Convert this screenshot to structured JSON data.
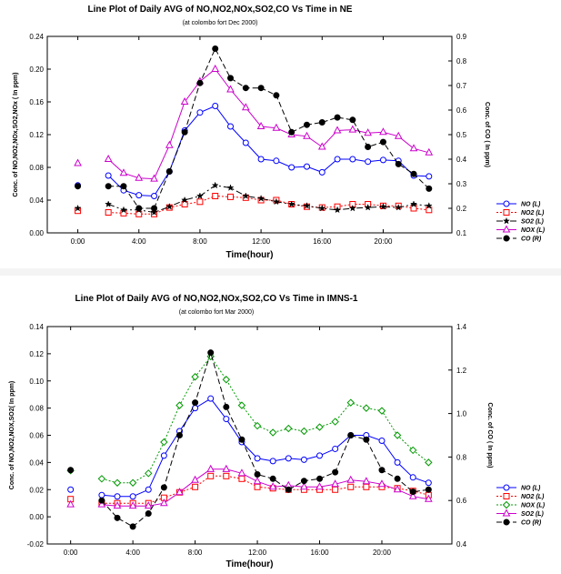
{
  "chart_data": [
    {
      "type": "line",
      "title": "Line Plot of Daily AVG of NO,NO2,NOx,SO2,CO Vs Time in NE",
      "subtitle": "(at colombo fort Dec 2000)",
      "xlabel": "Time(hour)",
      "ylabel": "Conc. of NO,NO2,NOx,SO2,NOx ( In ppm)",
      "ylabel_right": "Conc. of CO ( In ppm)",
      "x_ticks": [
        "0:00",
        "4:00",
        "8:00",
        "12:00",
        "16:00",
        "20:00"
      ],
      "xlim": [
        -2,
        24.5
      ],
      "ylim": [
        0,
        0.24
      ],
      "y_ticks": [
        "0.00",
        "0.04",
        "0.08",
        "0.12",
        "0.16",
        "0.20",
        "0.24"
      ],
      "ylim_right": [
        0.1,
        0.9
      ],
      "y_ticks_right": [
        "0.1",
        "0.2",
        "0.3",
        "0.4",
        "0.5",
        "0.6",
        "0.7",
        "0.8",
        "0.9"
      ],
      "grid": false,
      "legend_position": "lower-right",
      "series": [
        {
          "name": "NO (L)",
          "axis": "left",
          "color": "#0000ff",
          "marker": "circle",
          "dash": "solid",
          "x": [
            0,
            2,
            3,
            4,
            5,
            6,
            7,
            8,
            9,
            10,
            11,
            12,
            13,
            14,
            15,
            16,
            17,
            18,
            19,
            20,
            21,
            22,
            23
          ],
          "y": [
            0.058,
            0.07,
            0.052,
            0.046,
            0.045,
            0.075,
            0.125,
            0.147,
            0.155,
            0.13,
            0.11,
            0.09,
            0.088,
            0.08,
            0.081,
            0.074,
            0.09,
            0.09,
            0.087,
            0.089,
            0.088,
            0.07,
            0.069
          ]
        },
        {
          "name": "NO2 (L)",
          "axis": "left",
          "color": "#ff0000",
          "marker": "square",
          "dash": "dot",
          "x": [
            0,
            2,
            3,
            4,
            5,
            6,
            7,
            8,
            9,
            10,
            11,
            12,
            13,
            14,
            15,
            16,
            17,
            18,
            19,
            20,
            21,
            22,
            23
          ],
          "y": [
            0.027,
            0.025,
            0.024,
            0.023,
            0.023,
            0.031,
            0.035,
            0.038,
            0.045,
            0.044,
            0.043,
            0.04,
            0.04,
            0.035,
            0.032,
            0.031,
            0.032,
            0.035,
            0.035,
            0.033,
            0.033,
            0.03,
            0.028
          ]
        },
        {
          "name": "SO2 (L)",
          "axis": "left",
          "color": "#000000",
          "marker": "star",
          "dash": "dashdot",
          "x": [
            0,
            2,
            3,
            4,
            5,
            6,
            7,
            8,
            9,
            10,
            11,
            12,
            13,
            14,
            15,
            16,
            17,
            18,
            19,
            20,
            21,
            22,
            23
          ],
          "y": [
            0.03,
            0.035,
            0.028,
            0.028,
            0.025,
            0.032,
            0.04,
            0.045,
            0.058,
            0.055,
            0.045,
            0.042,
            0.038,
            0.035,
            0.033,
            0.03,
            0.028,
            0.03,
            0.031,
            0.032,
            0.031,
            0.035,
            0.033
          ]
        },
        {
          "name": "NOX (L)",
          "axis": "left",
          "color": "#cc00cc",
          "marker": "triangle",
          "dash": "solid",
          "x": [
            0,
            2,
            3,
            4,
            5,
            6,
            7,
            8,
            9,
            10,
            11,
            12,
            13,
            14,
            15,
            16,
            17,
            18,
            19,
            20,
            21,
            22,
            23
          ],
          "y": [
            0.085,
            0.09,
            0.073,
            0.067,
            0.066,
            0.107,
            0.16,
            0.185,
            0.2,
            0.175,
            0.153,
            0.13,
            0.128,
            0.12,
            0.118,
            0.105,
            0.125,
            0.126,
            0.122,
            0.123,
            0.118,
            0.103,
            0.098
          ]
        },
        {
          "name": "CO (R)",
          "axis": "right",
          "color": "#000000",
          "marker": "filled-circle",
          "dash": "dash",
          "x": [
            0,
            2,
            3,
            4,
            5,
            6,
            7,
            8,
            9,
            10,
            11,
            12,
            13,
            14,
            15,
            16,
            17,
            18,
            19,
            20,
            21,
            22,
            23
          ],
          "y": [
            0.29,
            0.29,
            0.29,
            0.2,
            0.2,
            0.35,
            0.51,
            0.71,
            0.85,
            0.73,
            0.69,
            0.69,
            0.66,
            0.51,
            0.54,
            0.55,
            0.57,
            0.56,
            0.45,
            0.47,
            0.38,
            0.34,
            0.28
          ]
        }
      ]
    },
    {
      "type": "line",
      "title": "Line Plot of Daily AVG of NO,NO2,NOx,SO2,CO Vs Time in IMNS-1",
      "subtitle": "(at colombo fort Mar 2000)",
      "xlabel": "Time(hour)",
      "ylabel": "Conc. of NO,NO2,NOX,SO2( In ppm)",
      "ylabel_right": "Conc. of CO ( In ppm)",
      "x_ticks": [
        "0:00",
        "4:00",
        "8:00",
        "12:00",
        "16:00",
        "20:00"
      ],
      "xlim": [
        -1.5,
        24.5
      ],
      "ylim": [
        -0.02,
        0.14
      ],
      "y_ticks": [
        "-0.02",
        "0.00",
        "0.02",
        "0.04",
        "0.06",
        "0.08",
        "0.10",
        "0.12",
        "0.14"
      ],
      "ylim_right": [
        0.4,
        1.4
      ],
      "y_ticks_right": [
        "0.4",
        "0.6",
        "0.8",
        "1.0",
        "1.2",
        "1.4"
      ],
      "grid": false,
      "legend_position": "lower-right",
      "series": [
        {
          "name": "NO (L)",
          "axis": "left",
          "color": "#0000ff",
          "marker": "circle",
          "dash": "solid",
          "x": [
            0,
            2,
            3,
            4,
            5,
            6,
            7,
            8,
            9,
            10,
            11,
            12,
            13,
            14,
            15,
            16,
            17,
            18,
            19,
            20,
            21,
            22,
            23
          ],
          "y": [
            0.02,
            0.016,
            0.015,
            0.015,
            0.02,
            0.045,
            0.063,
            0.08,
            0.087,
            0.072,
            0.055,
            0.043,
            0.041,
            0.043,
            0.042,
            0.045,
            0.05,
            0.06,
            0.06,
            0.056,
            0.04,
            0.029,
            0.025
          ]
        },
        {
          "name": "NO2 (L)",
          "axis": "left",
          "color": "#ff0000",
          "marker": "square",
          "dash": "dot",
          "x": [
            0,
            2,
            3,
            4,
            5,
            6,
            7,
            8,
            9,
            10,
            11,
            12,
            13,
            14,
            15,
            16,
            17,
            18,
            19,
            20,
            21,
            22,
            23
          ],
          "y": [
            0.013,
            0.01,
            0.01,
            0.01,
            0.01,
            0.014,
            0.018,
            0.022,
            0.03,
            0.03,
            0.028,
            0.022,
            0.021,
            0.02,
            0.02,
            0.02,
            0.02,
            0.022,
            0.022,
            0.022,
            0.021,
            0.019,
            0.016
          ]
        },
        {
          "name": "NOX (L)",
          "axis": "left",
          "color": "#009900",
          "marker": "diamond",
          "dash": "dot",
          "x": [
            0,
            2,
            3,
            4,
            5,
            6,
            7,
            8,
            9,
            10,
            11,
            12,
            13,
            14,
            15,
            16,
            17,
            18,
            19,
            20,
            21,
            22,
            23
          ],
          "y": [
            0.034,
            0.028,
            0.025,
            0.025,
            0.032,
            0.055,
            0.082,
            0.103,
            0.118,
            0.101,
            0.082,
            0.067,
            0.062,
            0.065,
            0.063,
            0.066,
            0.07,
            0.084,
            0.08,
            0.078,
            0.06,
            0.049,
            0.04
          ]
        },
        {
          "name": "SO2 (L)",
          "axis": "left",
          "color": "#cc00cc",
          "marker": "triangle",
          "dash": "solid",
          "x": [
            0,
            2,
            3,
            4,
            5,
            6,
            7,
            8,
            9,
            10,
            11,
            12,
            13,
            14,
            15,
            16,
            17,
            18,
            19,
            20,
            21,
            22,
            23
          ],
          "y": [
            0.009,
            0.009,
            0.008,
            0.008,
            0.008,
            0.01,
            0.018,
            0.027,
            0.035,
            0.035,
            0.032,
            0.026,
            0.022,
            0.023,
            0.022,
            0.022,
            0.024,
            0.027,
            0.026,
            0.024,
            0.02,
            0.015,
            0.013
          ]
        },
        {
          "name": "CO (R)",
          "axis": "right",
          "color": "#000000",
          "marker": "filled-circle",
          "dash": "dash",
          "x": [
            0,
            2,
            3,
            4,
            5,
            6,
            7,
            8,
            9,
            10,
            11,
            12,
            13,
            14,
            15,
            16,
            17,
            18,
            19,
            20,
            21,
            22,
            23
          ],
          "y": [
            0.74,
            0.6,
            0.52,
            0.48,
            0.54,
            0.66,
            0.9,
            1.05,
            1.28,
            1.03,
            0.88,
            0.72,
            0.7,
            0.65,
            0.69,
            0.7,
            0.73,
            0.9,
            0.88,
            0.74,
            0.7,
            0.64,
            0.65
          ]
        }
      ]
    }
  ]
}
